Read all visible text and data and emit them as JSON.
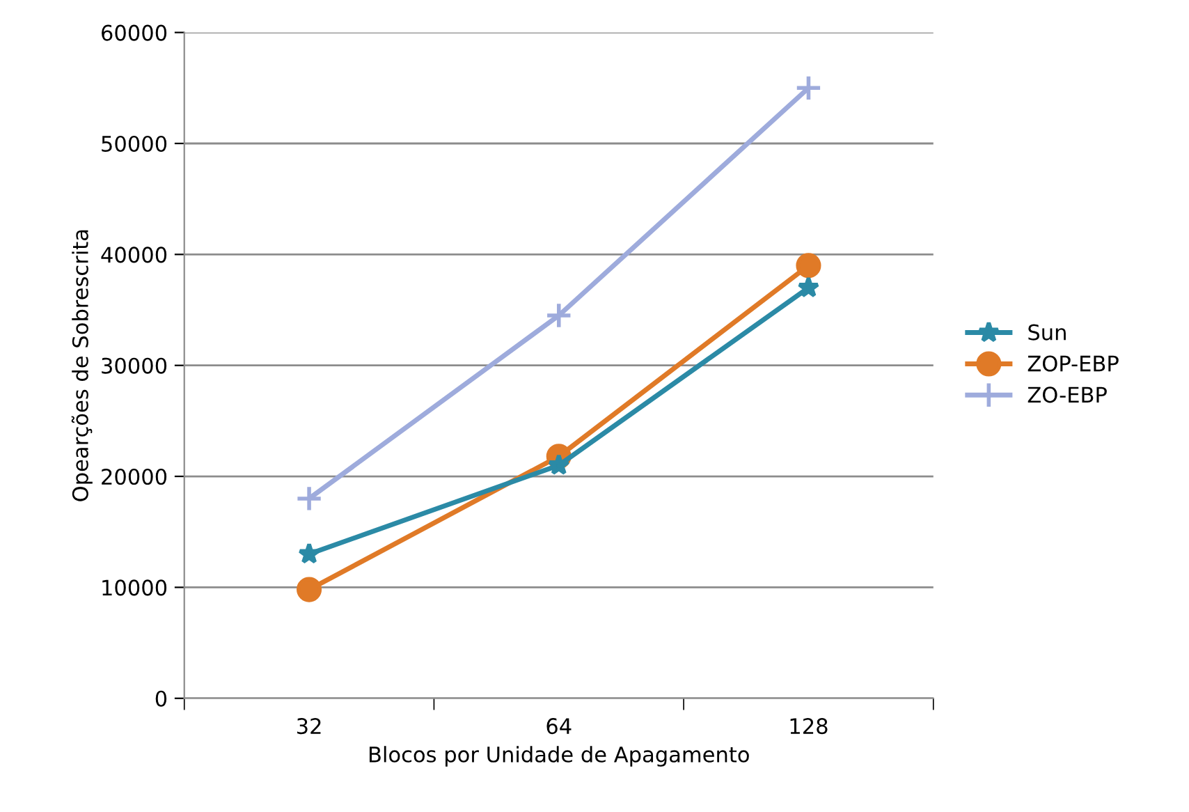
{
  "chart_data": {
    "type": "line",
    "xlabel": "Blocos por Unidade de Apagamento",
    "ylabel": "Opearções de Sobrescrita",
    "categories": [
      "32",
      "64",
      "128"
    ],
    "series": [
      {
        "name": "Sun",
        "color": "#2b8aa6",
        "marker": "star",
        "values": [
          13000,
          21000,
          37000
        ]
      },
      {
        "name": "ZOP-EBP",
        "color": "#e07a27",
        "marker": "circle",
        "values": [
          9800,
          21800,
          39000
        ]
      },
      {
        "name": "ZO-EBP",
        "color": "#9eabdc",
        "marker": "cross",
        "values": [
          18000,
          34500,
          55000
        ]
      }
    ],
    "ylim": [
      0,
      60000
    ],
    "yticks": [
      0,
      10000,
      20000,
      30000,
      40000,
      50000,
      60000
    ],
    "grid": "y",
    "legend": "right"
  }
}
